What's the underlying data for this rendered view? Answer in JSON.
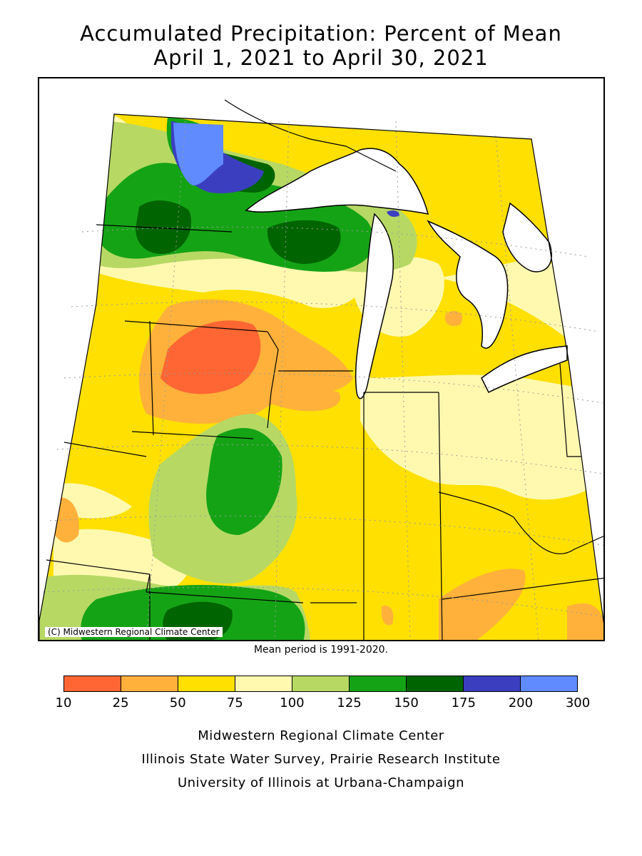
{
  "title_line1": "Accumulated Precipitation: Percent of Mean",
  "title_line2": "April 1, 2021 to April 30, 2021",
  "map_credit": "(C) Midwestern Regional Climate Center",
  "mean_period": "Mean period is 1991-2020.",
  "legend": {
    "ticks": [
      "10",
      "25",
      "50",
      "75",
      "100",
      "125",
      "150",
      "175",
      "200",
      "300"
    ],
    "colors": [
      "#ff6633",
      "#ffb13b",
      "#ffe000",
      "#fff9b0",
      "#b7d964",
      "#15a316",
      "#006400",
      "#3b3fbf",
      "#5f8bff"
    ]
  },
  "footer": {
    "line1": "Midwestern Regional Climate Center",
    "line2": "Illinois State Water Survey, Prairie Research Institute",
    "line3": "University of Illinois at Urbana-Champaign"
  }
}
